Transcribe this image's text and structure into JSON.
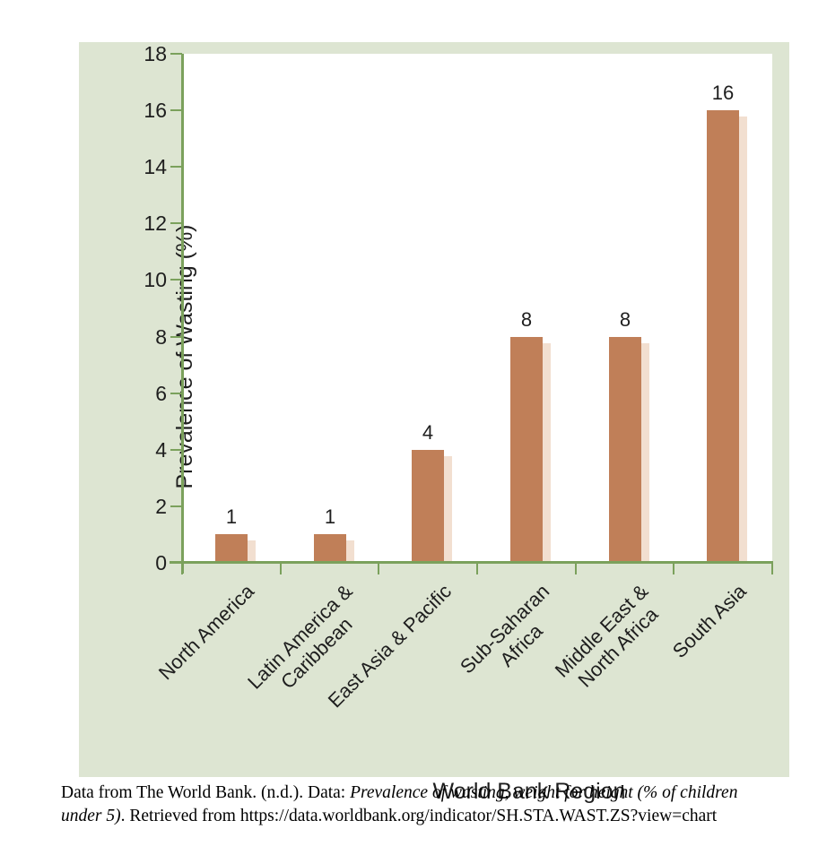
{
  "chart_data": {
    "type": "bar",
    "title": "",
    "xlabel": "World Bank Region",
    "ylabel": "Prevalence of Wasting (%)",
    "categories": [
      "North America",
      "Latin America & Caribbean",
      "East Asia & Pacific",
      "Sub-Saharan Africa",
      "Middle East & North Africa",
      "South Asia"
    ],
    "category_label_lines": [
      [
        "North America"
      ],
      [
        "Latin America &",
        "Caribbean"
      ],
      [
        "East Asia & Pacific"
      ],
      [
        "Sub-Saharan",
        "Africa"
      ],
      [
        "Middle East &",
        "North Africa"
      ],
      [
        "South Asia"
      ]
    ],
    "values": [
      1,
      1,
      4,
      8,
      8,
      16
    ],
    "data_labels": [
      "1",
      "1",
      "4",
      "8",
      "8",
      "16"
    ],
    "ylim": [
      0,
      18
    ],
    "yticks": [
      0,
      2,
      4,
      6,
      8,
      10,
      12,
      14,
      16,
      18
    ],
    "grid": false,
    "legend": "none",
    "colors": {
      "bar": "#c07f58",
      "bar_shadow": "#f2dfd0",
      "panel_background": "#dde5d2",
      "plot_background": "#ffffff",
      "axis": "#7ba15c",
      "text": "#1e1e1e"
    }
  },
  "citation": {
    "lines": [
      [
        {
          "text": "Data from The World Bank. (n.d.). Data: ",
          "italic": false
        },
        {
          "text": "Prevalence of wasting, weight for height (% of children",
          "italic": true
        }
      ],
      [
        {
          "text": "under 5)",
          "italic": true
        },
        {
          "text": ". Retrieved from https://data.worldbank.org/indicator/SH.STA.WAST.ZS?view=chart",
          "italic": false
        }
      ]
    ]
  }
}
